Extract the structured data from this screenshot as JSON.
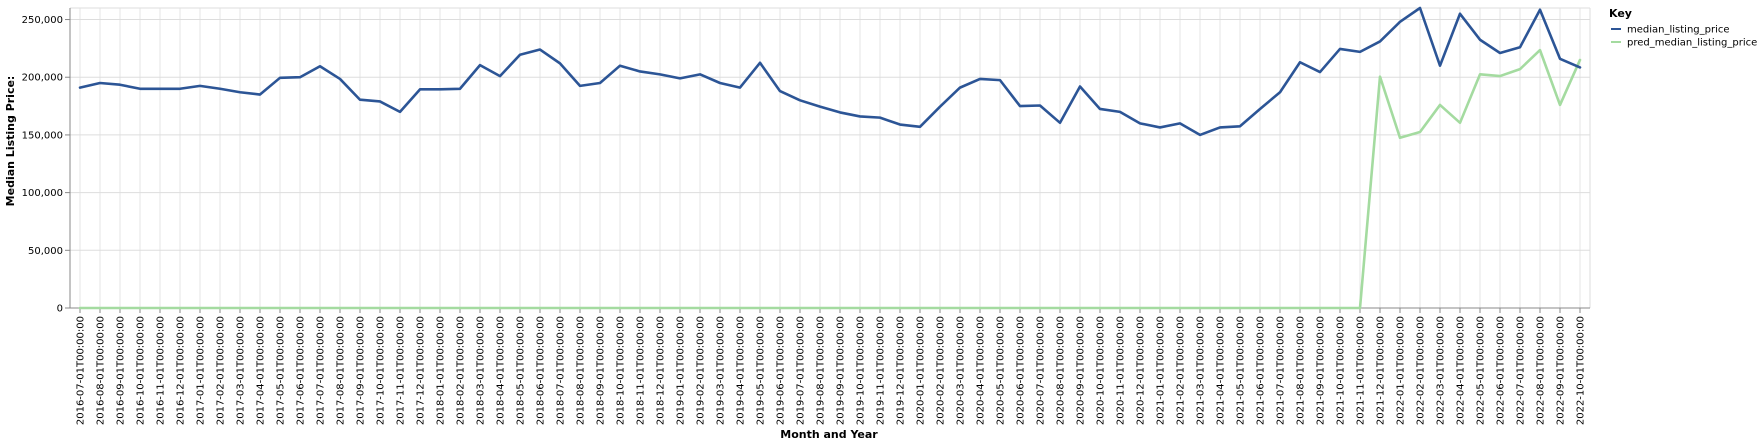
{
  "chart_data": {
    "type": "line",
    "xlabel": "Month and Year",
    "ylabel": "Median Listing Price:",
    "ylim": [
      0,
      260000
    ],
    "yticks": [
      0,
      50000,
      100000,
      150000,
      200000,
      250000
    ],
    "ytick_labels": [
      "0",
      "50,000",
      "100,000",
      "150,000",
      "200,000",
      "250,000"
    ],
    "grid": true,
    "legend": {
      "title": "Key",
      "placement": "top-right"
    },
    "x": [
      "2016-07-01T00:00:00",
      "2016-08-01T00:00:00",
      "2016-09-01T00:00:00",
      "2016-10-01T00:00:00",
      "2016-11-01T00:00:00",
      "2016-12-01T00:00:00",
      "2017-01-01T00:00:00",
      "2017-02-01T00:00:00",
      "2017-03-01T00:00:00",
      "2017-04-01T00:00:00",
      "2017-05-01T00:00:00",
      "2017-06-01T00:00:00",
      "2017-07-01T00:00:00",
      "2017-08-01T00:00:00",
      "2017-09-01T00:00:00",
      "2017-10-01T00:00:00",
      "2017-11-01T00:00:00",
      "2017-12-01T00:00:00",
      "2018-01-01T00:00:00",
      "2018-02-01T00:00:00",
      "2018-03-01T00:00:00",
      "2018-04-01T00:00:00",
      "2018-05-01T00:00:00",
      "2018-06-01T00:00:00",
      "2018-07-01T00:00:00",
      "2018-08-01T00:00:00",
      "2018-09-01T00:00:00",
      "2018-10-01T00:00:00",
      "2018-11-01T00:00:00",
      "2018-12-01T00:00:00",
      "2019-01-01T00:00:00",
      "2019-02-01T00:00:00",
      "2019-03-01T00:00:00",
      "2019-04-01T00:00:00",
      "2019-05-01T00:00:00",
      "2019-06-01T00:00:00",
      "2019-07-01T00:00:00",
      "2019-08-01T00:00:00",
      "2019-09-01T00:00:00",
      "2019-10-01T00:00:00",
      "2019-11-01T00:00:00",
      "2019-12-01T00:00:00",
      "2020-01-01T00:00:00",
      "2020-02-01T00:00:00",
      "2020-03-01T00:00:00",
      "2020-04-01T00:00:00",
      "2020-05-01T00:00:00",
      "2020-06-01T00:00:00",
      "2020-07-01T00:00:00",
      "2020-08-01T00:00:00",
      "2020-09-01T00:00:00",
      "2020-10-01T00:00:00",
      "2020-11-01T00:00:00",
      "2020-12-01T00:00:00",
      "2021-01-01T00:00:00",
      "2021-02-01T00:00:00",
      "2021-03-01T00:00:00",
      "2021-04-01T00:00:00",
      "2021-05-01T00:00:00",
      "2021-06-01T00:00:00",
      "2021-07-01T00:00:00",
      "2021-08-01T00:00:00",
      "2021-09-01T00:00:00",
      "2021-10-01T00:00:00",
      "2021-11-01T00:00:00",
      "2021-12-01T00:00:00",
      "2022-01-01T00:00:00",
      "2022-02-01T00:00:00",
      "2022-03-01T00:00:00",
      "2022-04-01T00:00:00",
      "2022-05-01T00:00:00",
      "2022-06-01T00:00:00",
      "2022-07-01T00:00:00",
      "2022-08-01T00:00:00",
      "2022-09-01T00:00:00",
      "2022-10-01T00:00:00"
    ],
    "series": [
      {
        "name": "median_listing_price",
        "color": "#2c5596",
        "values": [
          191000,
          195000,
          193500,
          190000,
          190000,
          190000,
          192500,
          190000,
          187000,
          185000,
          199500,
          200000,
          209500,
          198500,
          180500,
          179000,
          170000,
          189500,
          189500,
          190000,
          210500,
          201000,
          219500,
          224000,
          212000,
          192500,
          195000,
          210000,
          205000,
          202500,
          199000,
          202500,
          195000,
          191000,
          212500,
          188000,
          180000,
          174500,
          169500,
          166000,
          165000,
          159000,
          157000,
          174500,
          191000,
          198500,
          197500,
          175000,
          175500,
          160500,
          192000,
          172500,
          170000,
          160000,
          156500,
          160000,
          150000,
          156500,
          157500,
          172500,
          187000,
          213000,
          204500,
          224500,
          222000,
          231000,
          248000,
          260000,
          210000,
          255000,
          232500,
          221000,
          226000,
          258500,
          216000,
          208500
        ]
      },
      {
        "name": "pred_median_listing_price",
        "color": "#a4dba0",
        "values": [
          0,
          0,
          0,
          0,
          0,
          0,
          0,
          0,
          0,
          0,
          0,
          0,
          0,
          0,
          0,
          0,
          0,
          0,
          0,
          0,
          0,
          0,
          0,
          0,
          0,
          0,
          0,
          0,
          0,
          0,
          0,
          0,
          0,
          0,
          0,
          0,
          0,
          0,
          0,
          0,
          0,
          0,
          0,
          0,
          0,
          0,
          0,
          0,
          0,
          0,
          0,
          0,
          0,
          0,
          0,
          0,
          0,
          0,
          0,
          0,
          0,
          0,
          0,
          0,
          0,
          200500,
          147500,
          152500,
          176000,
          160500,
          202500,
          201000,
          207000,
          223500,
          176000,
          215000
        ]
      }
    ]
  }
}
